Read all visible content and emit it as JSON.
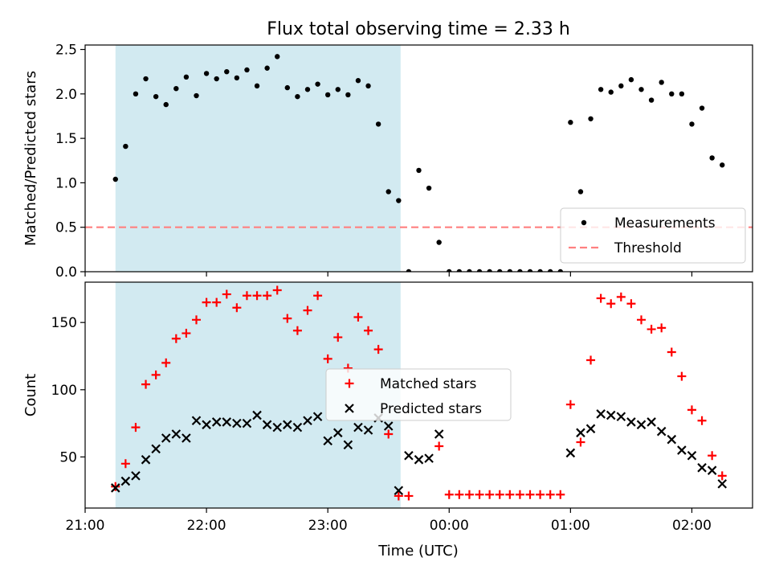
{
  "title": "Flux total observing time = 2.33 h",
  "xlabel": "Time (UTC)",
  "colors": {
    "band": "#add8e6",
    "threshold": "#ff8080",
    "measurements": "#000000",
    "matched": "#ff0000",
    "predicted": "#000000"
  },
  "chart_data": [
    {
      "type": "scatter",
      "ylabel": "Matched/Predicted stars",
      "xlim": [
        "21:00",
        "02:30"
      ],
      "ylim": [
        0,
        2.55
      ],
      "yticks": [
        0.0,
        0.5,
        1.0,
        1.5,
        2.0,
        2.5
      ],
      "ytick_labels": [
        "0.0",
        "0.5",
        "1.0",
        "1.5",
        "2.0",
        "2.5"
      ],
      "xticks": [
        "21:00",
        "22:00",
        "23:00",
        "00:00",
        "01:00",
        "02:00"
      ],
      "shaded_interval": [
        "21:15",
        "23:36"
      ],
      "threshold": 0.5,
      "legend_position": "lower right",
      "legend": [
        "Measurements",
        "Threshold"
      ],
      "series": [
        {
          "name": "Measurements",
          "marker": "dot",
          "x": [
            "21:15",
            "21:20",
            "21:25",
            "21:30",
            "21:35",
            "21:40",
            "21:45",
            "21:50",
            "21:55",
            "22:00",
            "22:05",
            "22:10",
            "22:15",
            "22:20",
            "22:25",
            "22:30",
            "22:35",
            "22:40",
            "22:45",
            "22:50",
            "22:55",
            "23:00",
            "23:05",
            "23:10",
            "23:15",
            "23:20",
            "23:25",
            "23:30",
            "23:35",
            "23:40",
            "23:45",
            "23:50",
            "23:55",
            "00:00",
            "00:05",
            "00:10",
            "00:15",
            "00:20",
            "00:25",
            "00:30",
            "00:35",
            "00:40",
            "00:45",
            "00:50",
            "00:55",
            "01:00",
            "01:05",
            "01:10",
            "01:15",
            "01:20",
            "01:25",
            "01:30",
            "01:35",
            "01:40",
            "01:45",
            "01:50",
            "01:55",
            "02:00",
            "02:05",
            "02:10",
            "02:15"
          ],
          "y": [
            1.04,
            1.41,
            2.0,
            2.17,
            1.97,
            1.88,
            2.06,
            2.19,
            1.98,
            2.23,
            2.17,
            2.25,
            2.18,
            2.27,
            2.09,
            2.29,
            2.42,
            2.07,
            1.97,
            2.05,
            2.11,
            1.99,
            2.05,
            1.99,
            2.15,
            2.09,
            1.66,
            0.9,
            0.8,
            0.0,
            1.14,
            0.94,
            0.33,
            0.0,
            0.0,
            0.0,
            0.0,
            0.0,
            0.0,
            0.0,
            0.0,
            0.0,
            0.0,
            0.0,
            0.0,
            1.68,
            0.9,
            1.72,
            2.05,
            2.02,
            2.09,
            2.16,
            2.05,
            1.93,
            2.13,
            2.0,
            2.0,
            1.66,
            1.84,
            1.28,
            1.2
          ]
        }
      ]
    },
    {
      "type": "scatter",
      "ylabel": "Count",
      "xlabel": "Time (UTC)",
      "xlim": [
        "21:00",
        "02:30"
      ],
      "ylim": [
        12,
        180
      ],
      "yticks": [
        50,
        100,
        150
      ],
      "ytick_labels": [
        "50",
        "100",
        "150"
      ],
      "xticks": [
        "21:00",
        "22:00",
        "23:00",
        "00:00",
        "01:00",
        "02:00"
      ],
      "xtick_labels": [
        "21:00",
        "22:00",
        "23:00",
        "00:00",
        "01:00",
        "02:00"
      ],
      "shaded_interval": [
        "21:15",
        "23:36"
      ],
      "legend_position": "center",
      "legend": [
        "Matched stars",
        "Predicted stars"
      ],
      "series": [
        {
          "name": "Matched stars",
          "marker": "plus",
          "x": [
            "21:15",
            "21:20",
            "21:25",
            "21:30",
            "21:35",
            "21:40",
            "21:45",
            "21:50",
            "21:55",
            "22:00",
            "22:05",
            "22:10",
            "22:15",
            "22:20",
            "22:25",
            "22:30",
            "22:35",
            "22:40",
            "22:45",
            "22:50",
            "22:55",
            "23:00",
            "23:05",
            "23:10",
            "23:15",
            "23:20",
            "23:25",
            "23:30",
            "23:35",
            "23:40",
            "23:55",
            "00:00",
            "00:05",
            "00:10",
            "00:15",
            "00:20",
            "00:25",
            "00:30",
            "00:35",
            "00:40",
            "00:45",
            "00:50",
            "00:55",
            "01:00",
            "01:05",
            "01:10",
            "01:15",
            "01:20",
            "01:25",
            "01:30",
            "01:35",
            "01:40",
            "01:45",
            "01:50",
            "01:55",
            "02:00",
            "02:05",
            "02:10",
            "02:15"
          ],
          "y": [
            28,
            45,
            72,
            104,
            111,
            120,
            138,
            142,
            152,
            165,
            165,
            171,
            161,
            170,
            170,
            170,
            174,
            153,
            144,
            159,
            170,
            123,
            139,
            116,
            154,
            144,
            130,
            67,
            21,
            21,
            58,
            22,
            22,
            22,
            22,
            22,
            22,
            22,
            22,
            22,
            22,
            22,
            22,
            89,
            61,
            122,
            168,
            164,
            169,
            164,
            152,
            145,
            146,
            128,
            110,
            85,
            77,
            51,
            36
          ]
        },
        {
          "name": "Predicted stars",
          "marker": "x",
          "x": [
            "21:15",
            "21:20",
            "21:25",
            "21:30",
            "21:35",
            "21:40",
            "21:45",
            "21:50",
            "21:55",
            "22:00",
            "22:05",
            "22:10",
            "22:15",
            "22:20",
            "22:25",
            "22:30",
            "22:35",
            "22:40",
            "22:45",
            "22:50",
            "22:55",
            "23:00",
            "23:05",
            "23:10",
            "23:15",
            "23:20",
            "23:25",
            "23:30",
            "23:35",
            "23:40",
            "23:45",
            "23:50",
            "23:55",
            "01:00",
            "01:05",
            "01:10",
            "01:15",
            "01:20",
            "01:25",
            "01:30",
            "01:35",
            "01:40",
            "01:45",
            "01:50",
            "01:55",
            "02:00",
            "02:05",
            "02:10",
            "02:15"
          ],
          "y": [
            27,
            32,
            36,
            48,
            56,
            64,
            67,
            64,
            77,
            74,
            76,
            76,
            75,
            75,
            81,
            74,
            72,
            74,
            72,
            77,
            80,
            62,
            68,
            59,
            72,
            70,
            79,
            73,
            25,
            51,
            48,
            49,
            67,
            53,
            68,
            71,
            82,
            81,
            80,
            76,
            74,
            76,
            69,
            63,
            55,
            51,
            42,
            40,
            30
          ]
        }
      ]
    }
  ]
}
